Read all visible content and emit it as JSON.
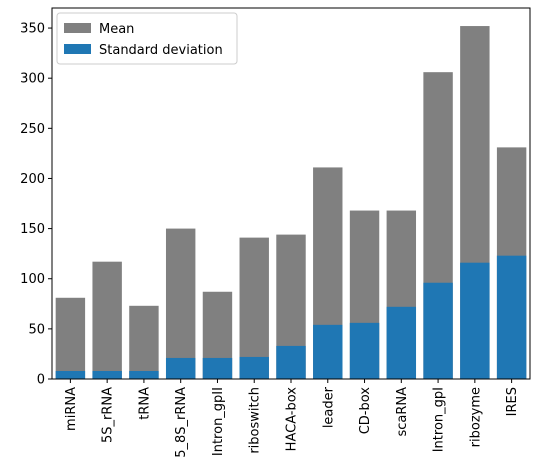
{
  "chart_data": {
    "type": "bar",
    "stacked": "overlay",
    "categories": [
      "miRNA",
      "5S_rRNA",
      "tRNA",
      "5_8S_rRNA",
      "Intron_gpII",
      "riboswitch",
      "HACA-box",
      "leader",
      "CD-box",
      "scaRNA",
      "Intron_gpI",
      "ribozyme",
      "IRES"
    ],
    "series": [
      {
        "name": "Mean",
        "color": "#808080",
        "values": [
          81,
          117,
          73,
          150,
          87,
          141,
          144,
          211,
          168,
          168,
          306,
          352,
          231
        ]
      },
      {
        "name": "Standard deviation",
        "color": "#1f77b4",
        "values": [
          8,
          8,
          8,
          21,
          21,
          22,
          33,
          54,
          56,
          72,
          96,
          116,
          123
        ]
      }
    ],
    "yticks": [
      0,
      50,
      100,
      150,
      200,
      250,
      300,
      350
    ],
    "ylim": [
      0,
      370
    ],
    "legend": "top-left",
    "grid": false,
    "title": "",
    "xlabel": "",
    "ylabel": ""
  }
}
